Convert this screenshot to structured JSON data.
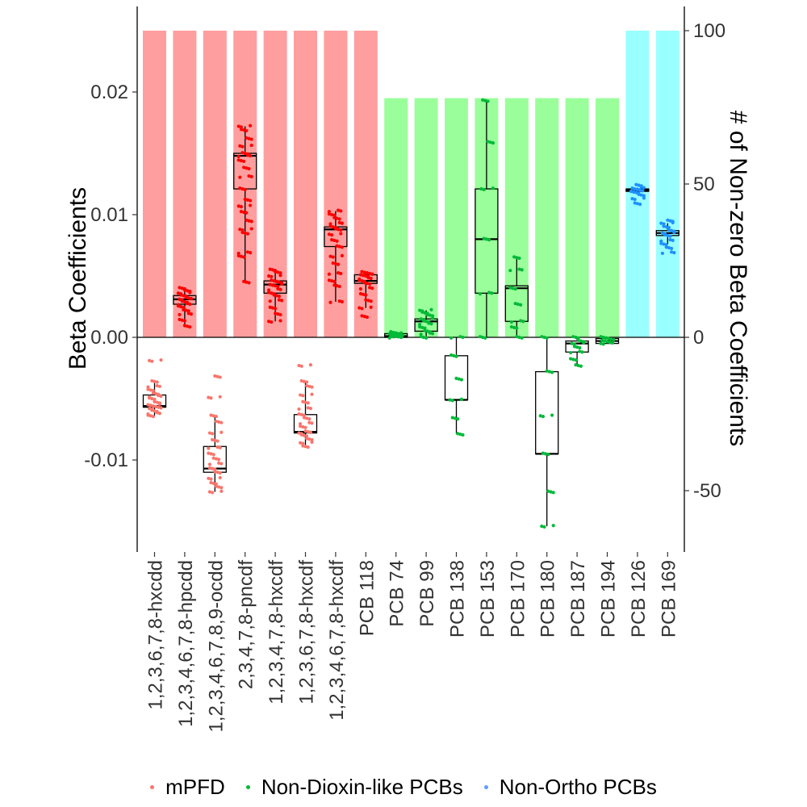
{
  "chart_data": {
    "type": "box-and-bar",
    "left_axis": {
      "label": "Beta Coefficients",
      "ticks": [
        -0.01,
        0.0,
        0.01,
        0.02
      ],
      "tick_labels": [
        "-0.01",
        "0.00",
        "0.01",
        "0.02"
      ],
      "range": [
        -0.0174,
        0.0268
      ]
    },
    "right_axis": {
      "label": "# of Non-zero Beta Coefficients",
      "ticks": [
        -50,
        0,
        50,
        100
      ],
      "tick_labels": [
        "-50",
        "0",
        "50",
        "100"
      ],
      "range": [
        -70.3,
        108.2
      ]
    },
    "categories": [
      "1,2,3,6,7,8-hxcdd",
      "1,2,3,4,6,7,8-hpcdd",
      "1,2,3,4,6,7,8,9-ocdd",
      "2,3,4,7,8-pncdf",
      "1,2,3,4,7,8-hxcdf",
      "1,2,3,6,7,8-hxcdf",
      "1,2,3,4,6,7,8-hxcdf",
      "PCB 118",
      "PCB 74",
      "PCB 99",
      "PCB 138",
      "PCB 153",
      "PCB 170",
      "PCB 180",
      "PCB 187",
      "PCB 194",
      "PCB 126",
      "PCB 169"
    ],
    "groups": [
      "mPFD",
      "mPFD",
      "mPFD",
      "mPFD",
      "mPFD",
      "mPFD",
      "mPFD",
      "mPFD",
      "Non-Dioxin-like PCBs",
      "Non-Dioxin-like PCBs",
      "Non-Dioxin-like PCBs",
      "Non-Dioxin-like PCBs",
      "Non-Dioxin-like PCBs",
      "Non-Dioxin-like PCBs",
      "Non-Dioxin-like PCBs",
      "Non-Dioxin-like PCBs",
      "Non-Ortho PCBs",
      "Non-Ortho PCBs"
    ],
    "nonzero_counts": [
      100,
      100,
      100,
      100,
      100,
      100,
      100,
      100,
      78,
      78,
      78,
      78,
      78,
      78,
      78,
      78,
      100,
      100
    ],
    "boxes": [
      {
        "min": -0.0064,
        "q1": -0.0057,
        "median": -0.0056,
        "q3": -0.0047,
        "max": -0.0036,
        "points": [
          -0.0064,
          -0.0062,
          -0.006,
          -0.0058,
          -0.0057,
          -0.0056,
          -0.0055,
          -0.0053,
          -0.005,
          -0.0048,
          -0.0046,
          -0.0043,
          -0.004,
          -0.0036,
          -0.0019
        ]
      },
      {
        "min": 0.0009,
        "q1": 0.0027,
        "median": 0.0031,
        "q3": 0.0034,
        "max": 0.004,
        "points": [
          0.0009,
          0.0014,
          0.0019,
          0.0022,
          0.0025,
          0.0027,
          0.0029,
          0.0031,
          0.0032,
          0.0034,
          0.0036,
          0.0038,
          0.004
        ]
      },
      {
        "min": -0.0126,
        "q1": -0.011,
        "median": -0.0107,
        "q3": -0.0089,
        "max": -0.0064,
        "points": [
          -0.0126,
          -0.0122,
          -0.0119,
          -0.0115,
          -0.011,
          -0.0107,
          -0.0103,
          -0.0099,
          -0.0095,
          -0.009,
          -0.0084,
          -0.0078,
          -0.0069,
          -0.0064,
          -0.0049,
          -0.0032
        ]
      },
      {
        "min": 0.0045,
        "q1": 0.0121,
        "median": 0.0148,
        "q3": 0.015,
        "max": 0.0172,
        "points": [
          0.0045,
          0.0066,
          0.0069,
          0.0085,
          0.0088,
          0.0095,
          0.0102,
          0.0107,
          0.0112,
          0.0121,
          0.0131,
          0.0138,
          0.0144,
          0.0148,
          0.015,
          0.0156,
          0.0162,
          0.0169,
          0.0172
        ]
      },
      {
        "min": 0.0013,
        "q1": 0.0036,
        "median": 0.0043,
        "q3": 0.0046,
        "max": 0.0055,
        "points": [
          0.0013,
          0.0019,
          0.0024,
          0.003,
          0.0034,
          0.0036,
          0.0039,
          0.0042,
          0.0043,
          0.0045,
          0.0046,
          0.005,
          0.0053,
          0.0055
        ]
      },
      {
        "min": -0.0089,
        "q1": -0.0078,
        "median": -0.0077,
        "q3": -0.0063,
        "max": -0.0036,
        "points": [
          -0.0089,
          -0.0086,
          -0.0083,
          -0.008,
          -0.0078,
          -0.0077,
          -0.0073,
          -0.007,
          -0.0066,
          -0.0063,
          -0.0058,
          -0.0053,
          -0.0047,
          -0.004,
          -0.0036,
          -0.0023
        ]
      },
      {
        "min": 0.0029,
        "q1": 0.0074,
        "median": 0.0088,
        "q3": 0.009,
        "max": 0.0103,
        "points": [
          0.0029,
          0.0042,
          0.0046,
          0.0052,
          0.006,
          0.0066,
          0.0074,
          0.0079,
          0.0084,
          0.0088,
          0.009,
          0.0093,
          0.0097,
          0.01,
          0.0103
        ]
      },
      {
        "min": 0.0024,
        "q1": 0.0044,
        "median": 0.0046,
        "q3": 0.0051,
        "max": 0.0053,
        "points": [
          0.0017,
          0.0024,
          0.003,
          0.0035,
          0.004,
          0.0044,
          0.0046,
          0.0048,
          0.005,
          0.0051,
          0.0052,
          0.0053
        ]
      },
      {
        "min": 0.0,
        "q1": 0.0,
        "median": 0.0001,
        "q3": 0.0003,
        "max": 0.0004,
        "points": [
          0.0,
          0.0001,
          0.0001,
          0.0002,
          0.0002,
          0.0003,
          0.0003,
          0.0004
        ]
      },
      {
        "min": 0.0,
        "q1": 0.0005,
        "median": 0.0013,
        "q3": 0.0015,
        "max": 0.0022,
        "points": [
          0.0,
          0.0003,
          0.0005,
          0.0008,
          0.0011,
          0.0013,
          0.0015,
          0.0018,
          0.002,
          0.0022
        ]
      },
      {
        "min": -0.0079,
        "q1": -0.0051,
        "median": -0.0051,
        "q3": -0.0015,
        "max": 0.0,
        "points": [
          -0.0079,
          -0.0066,
          -0.0051,
          -0.0034,
          -0.0015,
          0.0
        ]
      },
      {
        "min": 0.0,
        "q1": 0.0036,
        "median": 0.008,
        "q3": 0.0121,
        "max": 0.0193,
        "points": [
          0.0,
          0.0036,
          0.008,
          0.0121,
          0.0159,
          0.0193
        ]
      },
      {
        "min": 0.0,
        "q1": 0.0013,
        "median": 0.004,
        "q3": 0.0042,
        "max": 0.0065,
        "points": [
          0.0,
          0.0008,
          0.0013,
          0.0027,
          0.004,
          0.0055,
          0.0065
        ]
      },
      {
        "min": -0.0154,
        "q1": -0.0095,
        "median": -0.0095,
        "q3": -0.0028,
        "max": 0.0,
        "points": [
          -0.0154,
          -0.0126,
          -0.0095,
          -0.0064,
          -0.0028,
          0.0
        ]
      },
      {
        "min": -0.0023,
        "q1": -0.0012,
        "median": -0.0005,
        "q3": -0.0003,
        "max": 0.0,
        "points": [
          -0.0023,
          -0.0018,
          -0.0012,
          -0.0008,
          -0.0005,
          -0.0003,
          0.0
        ]
      },
      {
        "min": -0.0005,
        "q1": -0.0005,
        "median": -0.0003,
        "q3": -0.0001,
        "max": 0.0,
        "points": [
          -0.0005,
          -0.0004,
          -0.0003,
          -0.0002,
          -0.0001,
          0.0
        ]
      },
      {
        "min": 0.0119,
        "q1": 0.0119,
        "median": 0.012,
        "q3": 0.0121,
        "max": 0.0122,
        "points": [
          0.0109,
          0.0113,
          0.0116,
          0.0118,
          0.0119,
          0.012,
          0.0121,
          0.0122,
          0.0124
        ]
      },
      {
        "min": 0.0076,
        "q1": 0.0083,
        "median": 0.0085,
        "q3": 0.0087,
        "max": 0.0093,
        "points": [
          0.0069,
          0.0073,
          0.0076,
          0.0079,
          0.0083,
          0.0085,
          0.0087,
          0.009,
          0.0093,
          0.0095
        ]
      }
    ],
    "legend": {
      "position": "bottom",
      "items": [
        {
          "label": "mPFD",
          "color": "#F8766D"
        },
        {
          "label": "Non-Dioxin-like PCBs",
          "color": "#00BA38"
        },
        {
          "label": "Non-Ortho PCBs",
          "color": "#619CFF"
        }
      ]
    },
    "colors": {
      "bar": {
        "mPFD": "#FF9E9E",
        "Non-Dioxin-like PCBs": "#9AFF9A",
        "Non-Ortho PCBs": "#9AFFFF"
      },
      "point_positive": {
        "mPFD": "#FF0000",
        "Non-Dioxin-like PCBs": "#00BA38",
        "Non-Ortho PCBs": "#1E90FF"
      },
      "point_negative": {
        "mPFD": "#F8766D",
        "Non-Dioxin-like PCBs": "#00BA38",
        "Non-Ortho PCBs": "#619CFF"
      }
    },
    "grid": false
  }
}
